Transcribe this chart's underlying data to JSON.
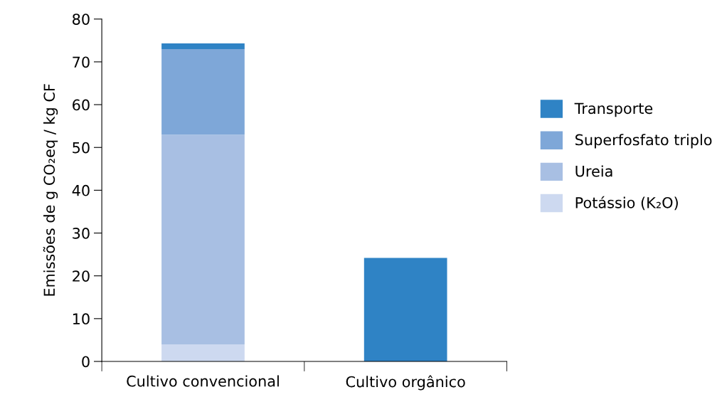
{
  "chart_data": {
    "type": "bar",
    "stacked": true,
    "ylabel": "Emissões de g CO₂eq / kg CF",
    "categories": [
      "Cultivo convencional",
      "Cultivo orgânico"
    ],
    "series": [
      {
        "name": "Potássio (K₂O)",
        "color": "#cdd9f0",
        "values": [
          4,
          0
        ]
      },
      {
        "name": "Ureia",
        "color": "#a8bfe3",
        "values": [
          49,
          0
        ]
      },
      {
        "name": "Superfosfato triplo",
        "color": "#7ea7d8",
        "values": [
          20,
          0
        ]
      },
      {
        "name": "Transporte",
        "color": "#2f83c5",
        "values": [
          1.3,
          24.2
        ]
      }
    ],
    "ylim": [
      0,
      80
    ],
    "yticks": [
      0,
      10,
      20,
      30,
      40,
      50,
      60,
      70,
      80
    ],
    "grid": false,
    "legend": "right"
  }
}
